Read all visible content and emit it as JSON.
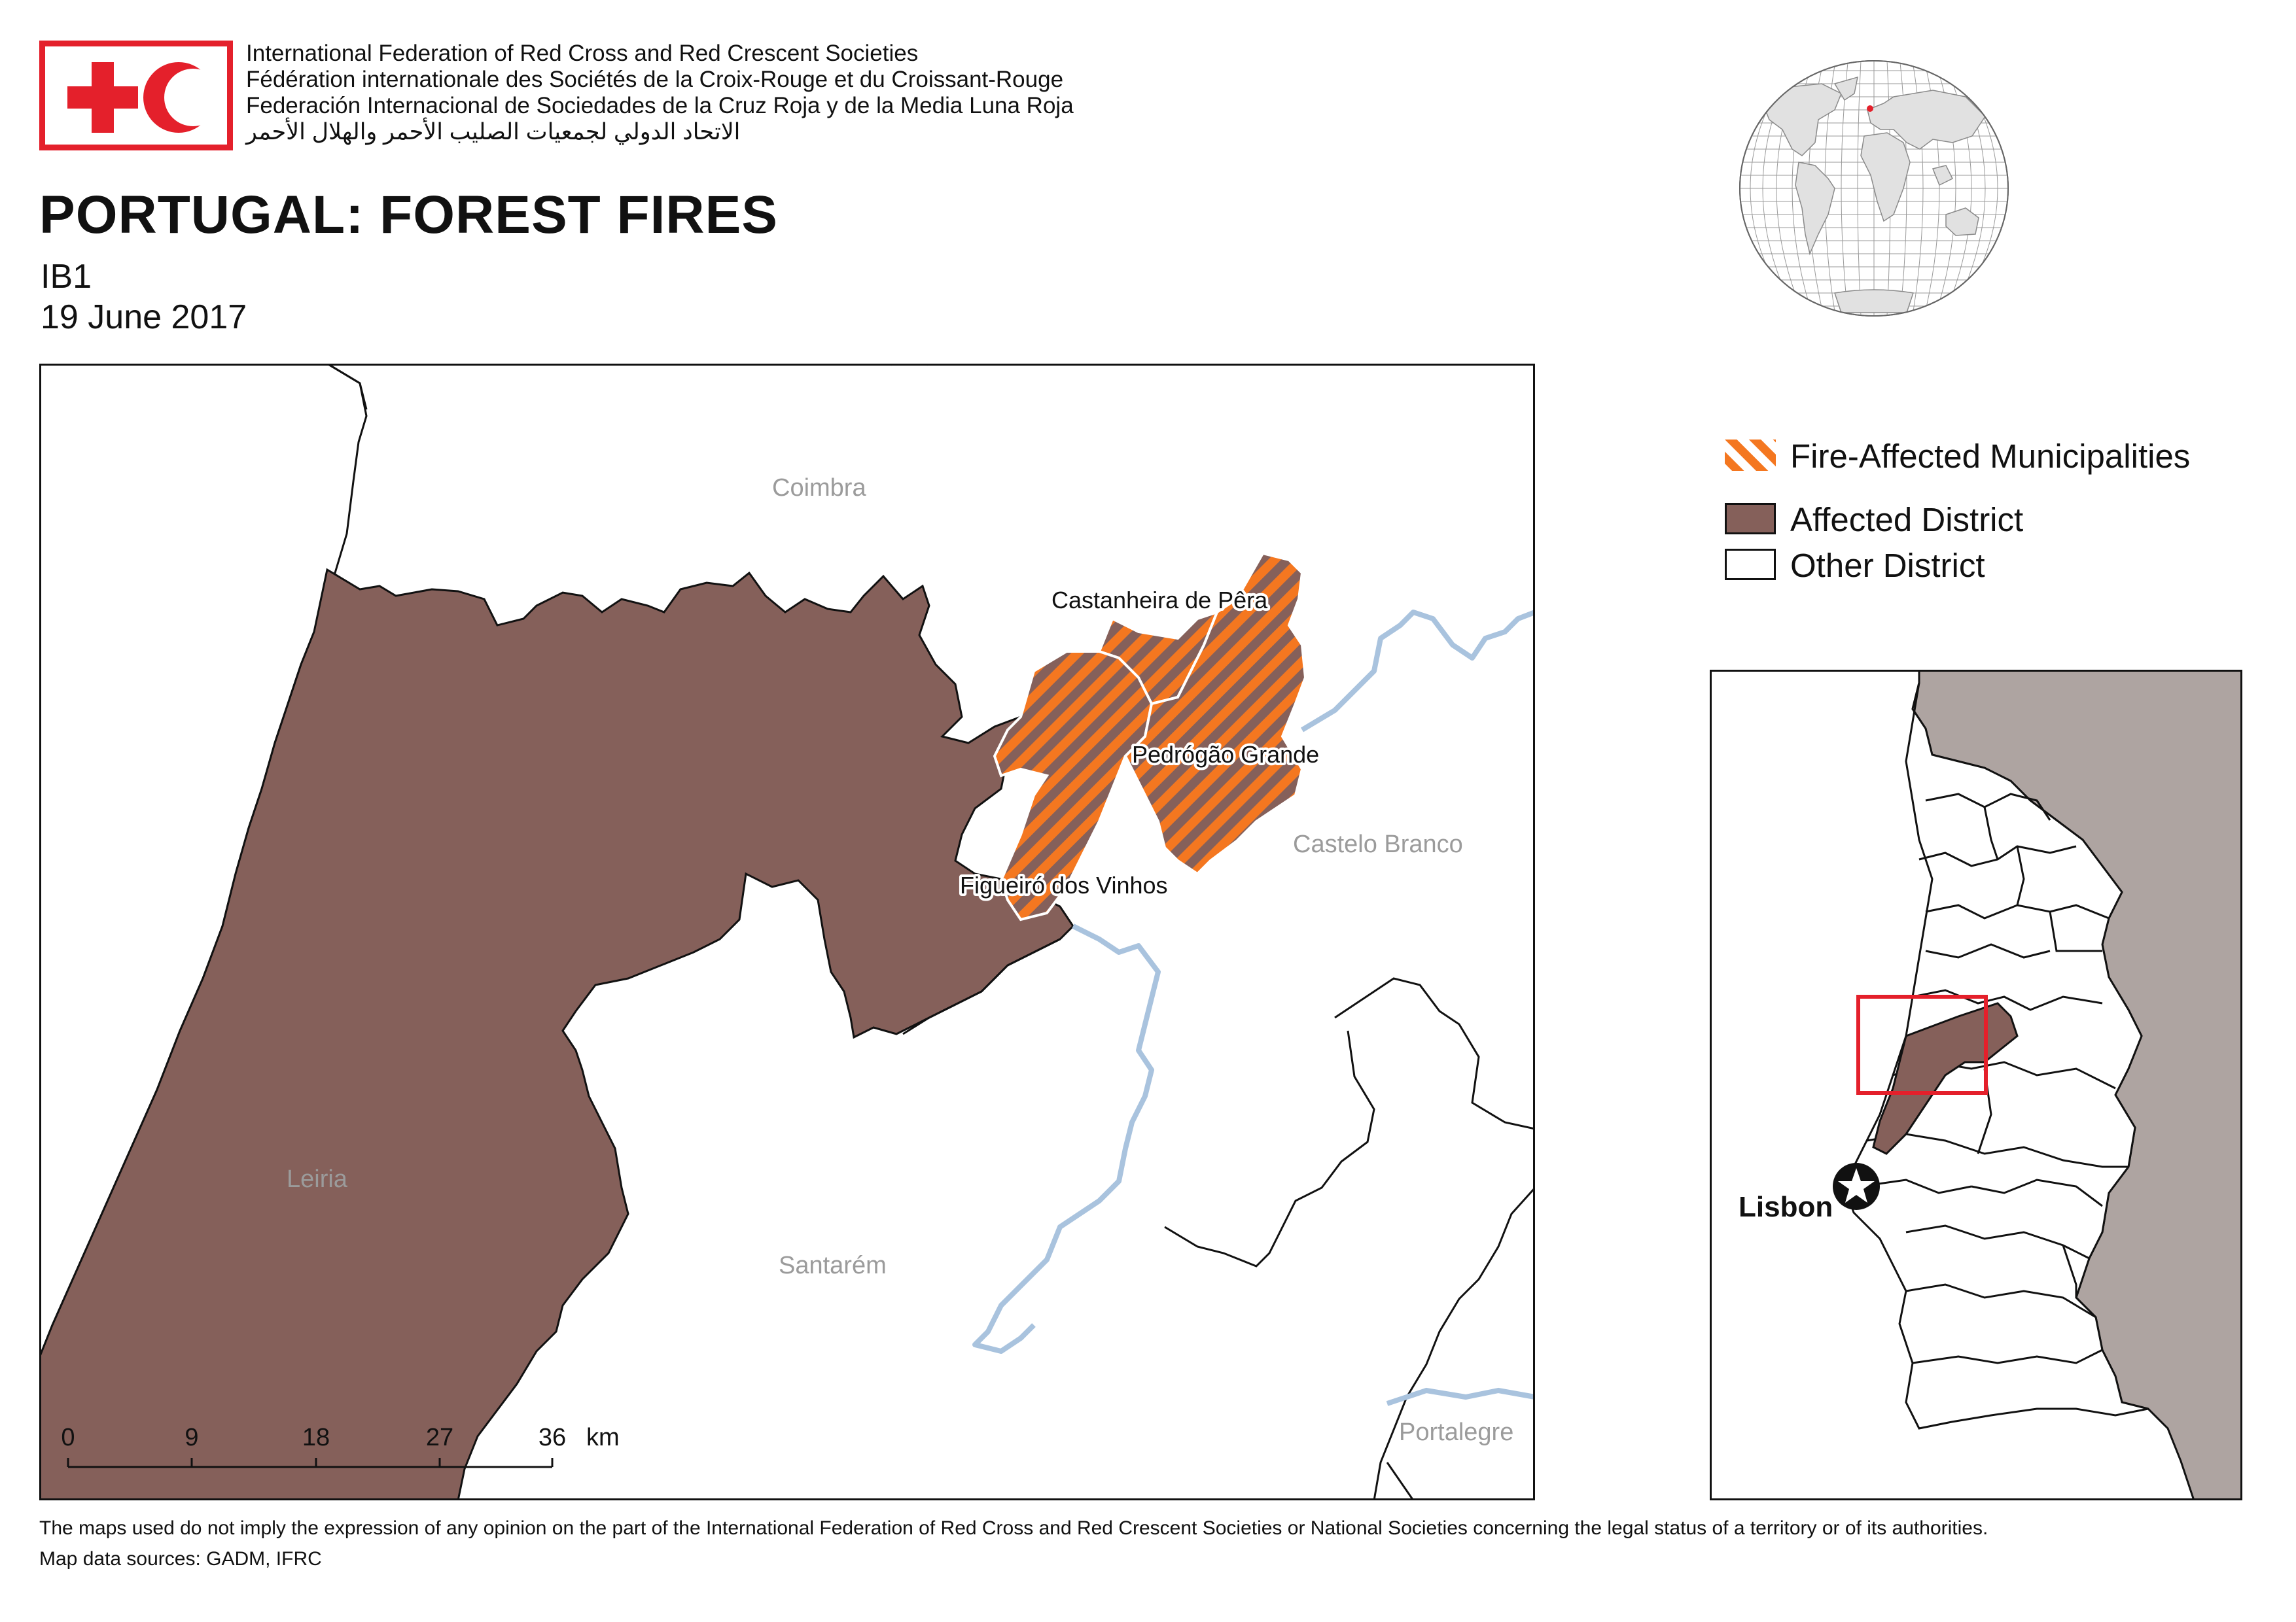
{
  "header": {
    "org_names": [
      "International Federation of Red Cross and Red Crescent Societies",
      "Fédération internationale des Sociétés de la Croix-Rouge et du Croissant-Rouge",
      "Federación Internacional de Sociedades de la Cruz Roja y de la Media Luna Roja",
      "الاتحاد الدولي لجمعيات الصليب الأحمر والهلال الأحمر"
    ],
    "title": "PORTUGAL: FOREST FIRES",
    "code": "IB1",
    "date": "19 June 2017"
  },
  "main_map": {
    "district_labels": {
      "coimbra": "Coimbra",
      "castelo_branco": "Castelo Branco",
      "leiria": "Leiria",
      "santarem": "Santarém",
      "portalegre": "Portalegre"
    },
    "municipality_labels": {
      "castanheira": "Castanheira de Pêra",
      "pedrogao": "Pedrógão Grande",
      "figueiro": "Figueiró dos Vinhos"
    },
    "scale_bar": {
      "ticks": [
        "0",
        "9",
        "18",
        "27",
        "36"
      ],
      "unit": "km"
    }
  },
  "legend": {
    "items": [
      {
        "label": "Fire-Affected Municipalities",
        "kind": "hatched"
      },
      {
        "label": "Affected District",
        "kind": "fill"
      },
      {
        "label": "Other District",
        "kind": "outline"
      }
    ]
  },
  "inset_map": {
    "city_label": "Lisbon"
  },
  "footer": {
    "disclaimer": "The maps used do not imply the expression of any opinion on the part of the International Federation of Red Cross and Red Crescent Societies or National Societies concerning the legal status of a territory or of its authorities.",
    "sources": "Map data sources: GADM, IFRC"
  },
  "colors": {
    "ifrc_red": "#e4202b",
    "affected_district": "#85605a",
    "fire_hatch": "#f47720",
    "river": "#a9c3de",
    "spain": "#aea4a1",
    "text_grey": "#9b9b9b"
  }
}
